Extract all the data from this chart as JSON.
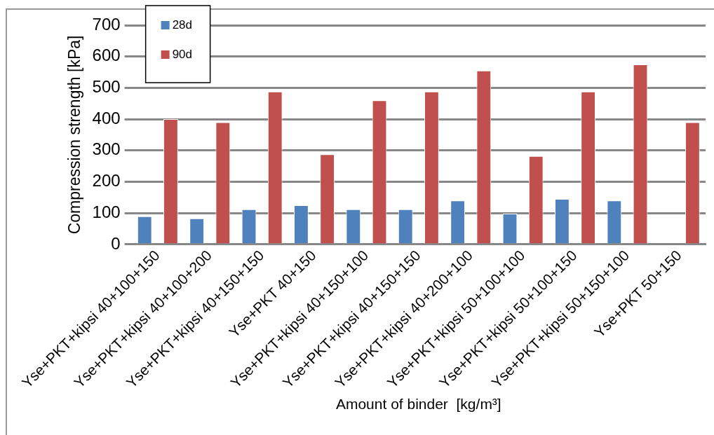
{
  "chart_data": {
    "type": "bar",
    "xlabel": "Amount of binder  [kg/m³]",
    "ylabel": "Compression strength [kPa]",
    "categories": [
      "Yse+PKT+kipsi 40+100+150",
      "Yse+PKT+kipsi 40+100+200",
      "Yse+PKT+kipsi 40+150+150",
      "Yse+PKT 40+150",
      "Yse+PKT+kipsi 40+150+100",
      "Yse+PKT+kipsi 40+150+150",
      "Yse+PKT+kipsi 40+200+100",
      "Yse+PKT+kipsi 50+100+100",
      "Yse+PKT+kipsi 50+100+150",
      "Yse+PKT+kipsi 50+150+100",
      "Yse+PKT 50+150"
    ],
    "series": [
      {
        "name": "28d",
        "color": "#4f81bd",
        "values": [
          90,
          83,
          112,
          125,
          112,
          112,
          140,
          98,
          145,
          140,
          null
        ]
      },
      {
        "name": "90d",
        "color": "#c0504d",
        "values": [
          400,
          390,
          488,
          288,
          460,
          488,
          555,
          282,
          488,
          575,
          390
        ]
      }
    ],
    "ylim": [
      0,
      700
    ],
    "yticks": [
      0,
      100,
      200,
      300,
      400,
      500,
      600,
      700
    ],
    "grid": "y",
    "legend": "top left"
  }
}
